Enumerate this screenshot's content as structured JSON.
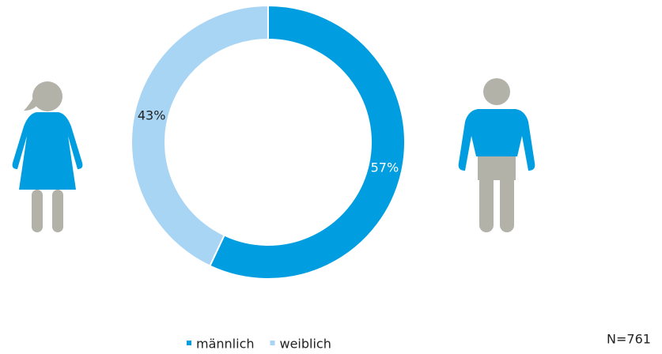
{
  "chart_data": {
    "type": "donut",
    "categories": [
      "männlich",
      "weiblich"
    ],
    "values": [
      57,
      43
    ],
    "value_labels": [
      "57%",
      "43%"
    ],
    "colors": [
      "#009ee0",
      "#a9d5f4"
    ],
    "legend": "bottom",
    "annotation": "N=761"
  }
}
